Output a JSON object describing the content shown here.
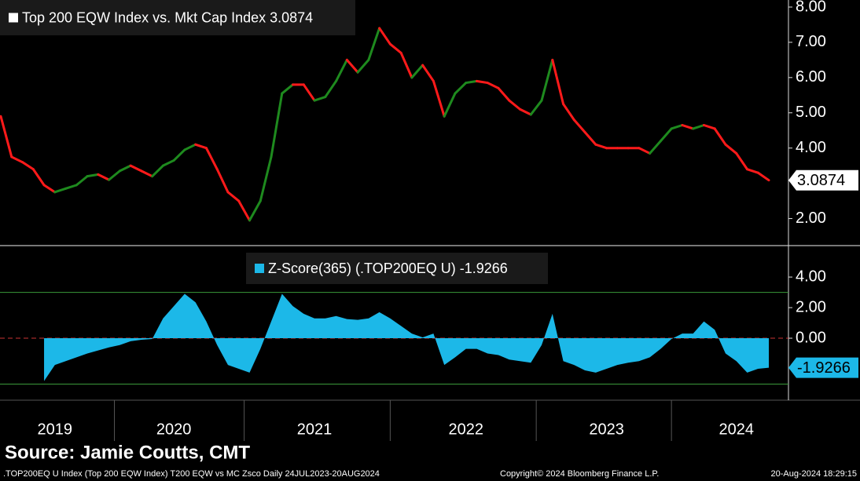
{
  "chart_data": [
    {
      "type": "line",
      "series": [
        {
          "name": "Top 200 EQW Index vs. Mkt Cap Index 3.0874",
          "color": "#ff1a1a",
          "up_color": "#1e8a1e",
          "values": [
            4.9,
            3.75,
            3.6,
            3.4,
            2.95,
            2.75,
            2.85,
            2.95,
            3.2,
            3.25,
            3.1,
            3.35,
            3.5,
            3.35,
            3.2,
            3.5,
            3.65,
            3.95,
            4.1,
            4.0,
            3.4,
            2.75,
            2.5,
            1.95,
            2.5,
            3.75,
            5.55,
            5.8,
            5.8,
            5.35,
            5.45,
            5.9,
            6.5,
            6.15,
            6.5,
            7.4,
            6.95,
            6.7,
            6.0,
            6.35,
            5.9,
            4.9,
            5.55,
            5.85,
            5.9,
            5.85,
            5.7,
            5.35,
            5.1,
            4.95,
            5.35,
            6.5,
            5.25,
            4.8,
            4.45,
            4.1,
            4.0,
            4.0,
            4.0,
            4.0,
            3.85,
            4.2,
            4.55,
            4.65,
            4.55,
            4.65,
            4.55,
            4.1,
            3.85,
            3.4,
            3.3,
            3.0874
          ]
        }
      ],
      "ylim": [
        1.3,
        8.2
      ],
      "yticks": [
        {
          "value": 2,
          "label": "2.00"
        },
        {
          "value": 4,
          "label": "4.00"
        },
        {
          "value": 5,
          "label": "5.00"
        },
        {
          "value": 6,
          "label": "6.00"
        },
        {
          "value": 7,
          "label": "7.00"
        },
        {
          "value": 8,
          "label": "8.00"
        }
      ]
    },
    {
      "type": "area",
      "categories": [
        null,
        null,
        null,
        null,
        null,
        "2019",
        null,
        null,
        null,
        null,
        null,
        null,
        null,
        null,
        null,
        null,
        "2020",
        null,
        null,
        null,
        null,
        null,
        null,
        null,
        null,
        null,
        null,
        null,
        null,
        "2021",
        null,
        null,
        null,
        null,
        null,
        null,
        null,
        null,
        null,
        null,
        null,
        null,
        null,
        "2022",
        null,
        null,
        null,
        null,
        null,
        null,
        null,
        null,
        null,
        null,
        null,
        null,
        "2023",
        null,
        null,
        null,
        null,
        null,
        null,
        null,
        null,
        null,
        null,
        null,
        "2024",
        null,
        null,
        null
      ],
      "series": [
        {
          "name": "Z-Score(365) (.TOP200EQ U) -1.9266",
          "color": "#1cb8e8",
          "values": [
            null,
            null,
            null,
            null,
            -2.8,
            -1.75,
            -1.5,
            -1.25,
            -1.0,
            -0.8,
            -0.6,
            -0.45,
            -0.2,
            -0.1,
            -0.05,
            1.3,
            2.1,
            2.9,
            2.35,
            1.1,
            -0.45,
            -1.75,
            -2.0,
            -2.25,
            -0.7,
            1.1,
            2.9,
            2.1,
            1.6,
            1.3,
            1.3,
            1.45,
            1.25,
            1.2,
            1.3,
            1.7,
            1.3,
            0.8,
            0.3,
            0.05,
            0.3,
            -1.75,
            -1.25,
            -0.7,
            -0.7,
            -1.0,
            -1.1,
            -1.4,
            -1.5,
            -1.6,
            -0.45,
            1.6,
            -1.5,
            -1.75,
            -2.1,
            -2.25,
            -2.0,
            -1.75,
            -1.6,
            -1.5,
            -1.25,
            -0.7,
            -0.05,
            0.3,
            0.3,
            1.1,
            0.55,
            -1.0,
            -1.5,
            -2.25,
            -2.0,
            -1.9266
          ]
        }
      ],
      "ylim": [
        -3.95,
        5.8
      ],
      "yticks": [
        {
          "value": 0,
          "label": "0.00"
        },
        {
          "value": 2,
          "label": "2.00"
        },
        {
          "value": 4,
          "label": "4.00"
        }
      ],
      "hlines": [
        {
          "value": 3,
          "color": "#3a9a3a"
        },
        {
          "value": -3,
          "color": "#3a9a3a"
        },
        {
          "value": 0,
          "color": "#cc3333",
          "dashed": true
        }
      ]
    }
  ],
  "footer": {
    "source": "Source: Jamie Coutts, CMT",
    "description": ".TOP200EQ U Index (Top 200 EQW Index) T200 EQW vs MC Zsco  Daily 24JUL2023-20AUG2024",
    "copyright": "Copyright© 2024 Bloomberg Finance L.P.",
    "timestamp": "20-Aug-2024 18:29:15"
  }
}
